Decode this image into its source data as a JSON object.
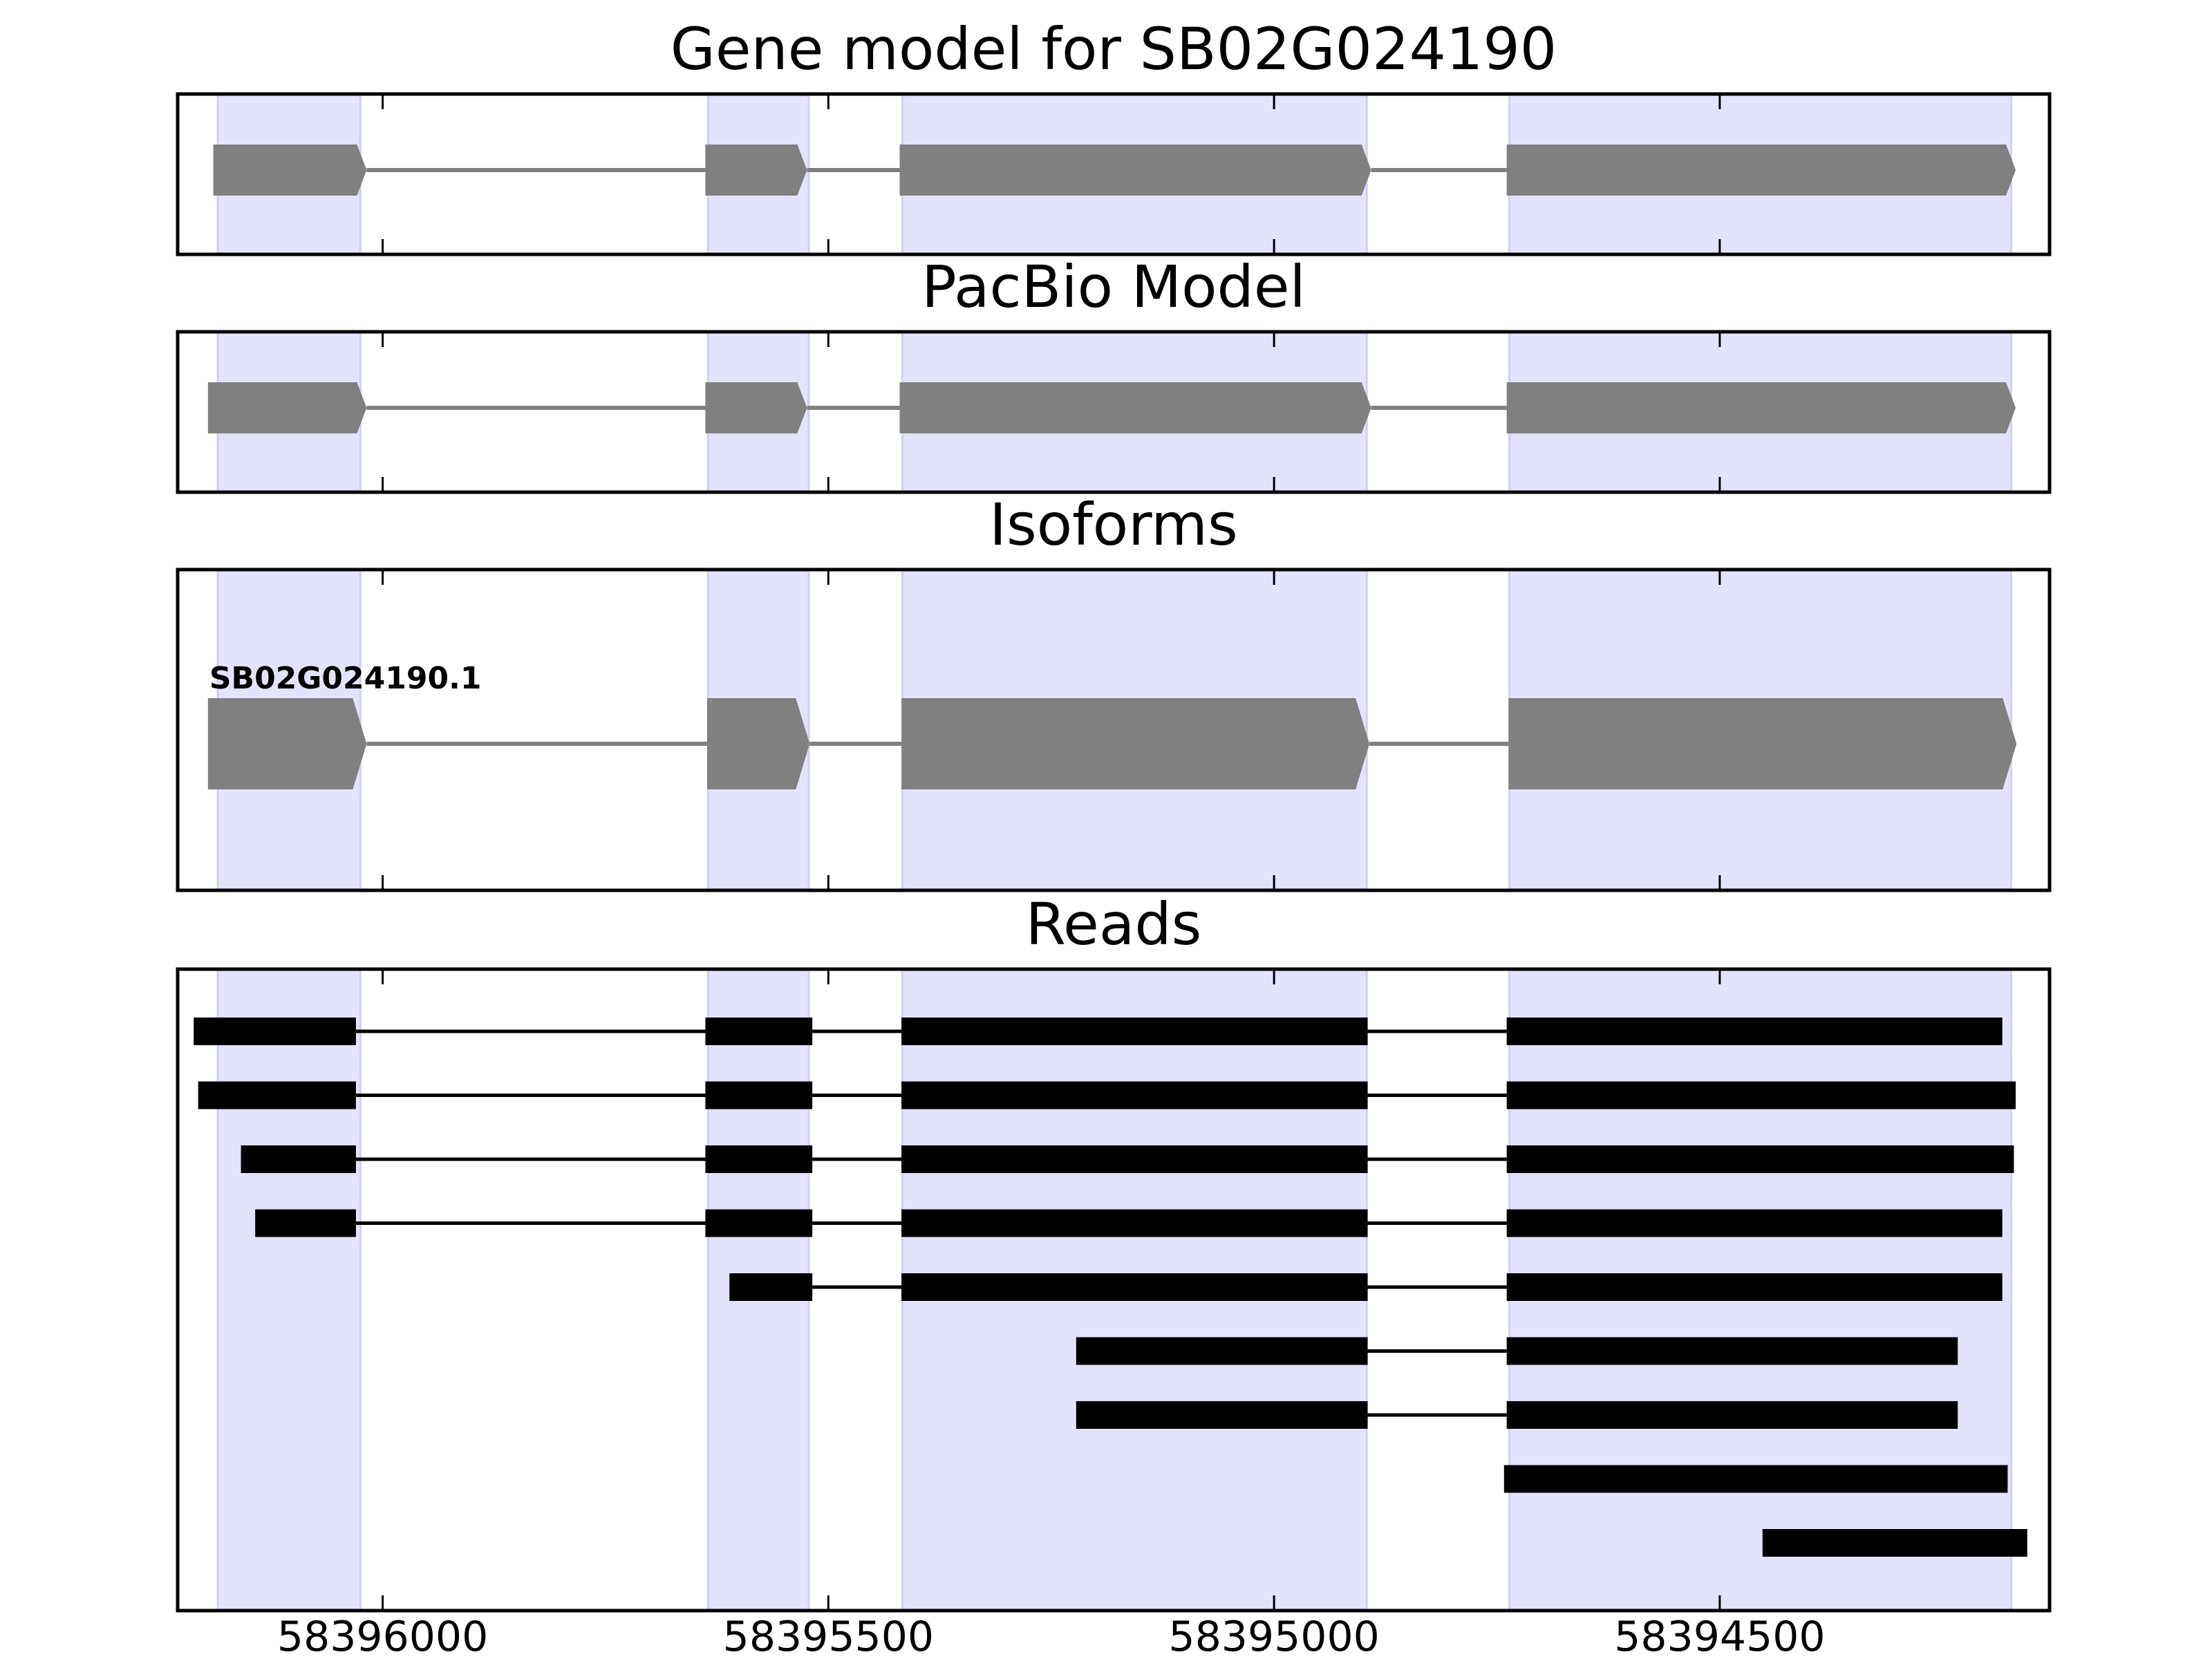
{
  "colors": {
    "exon_shade": "#e3e3fc",
    "exon_shade_edge": "#d0d0ee",
    "gene_feature": "#808080",
    "read": "#000000",
    "frame": "#000000"
  },
  "chart_data": {
    "type": "gene-track",
    "x_direction": "reversed",
    "xlim": [
      58396230,
      58394130
    ],
    "x_ticks": [
      58396000,
      58395500,
      58395000,
      58394500
    ],
    "x_tick_labels": [
      "58396000",
      "58395500",
      "58395000",
      "58394500"
    ],
    "exon_regions": [
      [
        58396185,
        58396025
      ],
      [
        58395635,
        58395522
      ],
      [
        58395417,
        58394896
      ],
      [
        58394736,
        58394173
      ]
    ],
    "panels": [
      {
        "id": "gene-model",
        "title": "Gene model for SB02G024190",
        "style": "arrow",
        "rows": [
          {
            "label": "",
            "exons": [
              [
                58396190,
                58396018
              ],
              [
                58395638,
                58395524
              ],
              [
                58395420,
                58394891
              ],
              [
                58394739,
                58394168
              ]
            ]
          }
        ]
      },
      {
        "id": "pacbio-model",
        "title": "PacBio Model",
        "style": "arrow",
        "rows": [
          {
            "label": "",
            "exons": [
              [
                58396196,
                58396018
              ],
              [
                58395638,
                58395524
              ],
              [
                58395420,
                58394891
              ],
              [
                58394739,
                58394168
              ]
            ]
          }
        ]
      },
      {
        "id": "isoforms",
        "title": "Isoforms",
        "style": "arrow",
        "rows": [
          {
            "label": "SB02G024190.1",
            "exons": [
              [
                58396196,
                58396018
              ],
              [
                58395636,
                58395521
              ],
              [
                58395418,
                58394893
              ],
              [
                58394737,
                58394167
              ]
            ]
          }
        ]
      },
      {
        "id": "reads",
        "title": "Reads",
        "style": "bar",
        "rows": [
          {
            "label": "",
            "exons": [
              [
                58396212,
                58396030
              ],
              [
                58395638,
                58395518
              ],
              [
                58395418,
                58394895
              ],
              [
                58394739,
                58394183
              ]
            ]
          },
          {
            "label": "",
            "exons": [
              [
                58396207,
                58396030
              ],
              [
                58395638,
                58395518
              ],
              [
                58395418,
                58394895
              ],
              [
                58394739,
                58394168
              ]
            ]
          },
          {
            "label": "",
            "exons": [
              [
                58396159,
                58396030
              ],
              [
                58395638,
                58395518
              ],
              [
                58395418,
                58394895
              ],
              [
                58394739,
                58394170
              ]
            ]
          },
          {
            "label": "",
            "exons": [
              [
                58396143,
                58396030
              ],
              [
                58395638,
                58395518
              ],
              [
                58395418,
                58394895
              ],
              [
                58394739,
                58394183
              ]
            ]
          },
          {
            "label": "",
            "exons": [
              [
                58395611,
                58395518
              ],
              [
                58395418,
                58394895
              ],
              [
                58394739,
                58394183
              ]
            ]
          },
          {
            "label": "",
            "exons": [
              [
                58395222,
                58394895
              ],
              [
                58394739,
                58394233
              ]
            ]
          },
          {
            "label": "",
            "exons": [
              [
                58395222,
                58394895
              ],
              [
                58394739,
                58394233
              ]
            ]
          },
          {
            "label": "",
            "exons": [
              [
                58394742,
                58394177
              ]
            ]
          },
          {
            "label": "",
            "exons": [
              [
                58394452,
                58394155
              ]
            ]
          }
        ]
      }
    ]
  }
}
